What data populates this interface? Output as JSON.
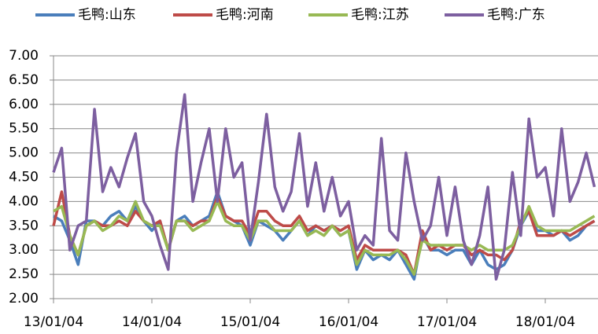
{
  "chart_data": {
    "type": "line",
    "categories": [
      "13/01/04",
      null,
      null,
      null,
      null,
      null,
      null,
      null,
      null,
      null,
      null,
      null,
      "14/01/04",
      null,
      null,
      null,
      null,
      null,
      null,
      null,
      null,
      null,
      null,
      null,
      "15/01/04",
      null,
      null,
      null,
      null,
      null,
      null,
      null,
      null,
      null,
      null,
      null,
      "16/01/04",
      null,
      null,
      null,
      null,
      null,
      null,
      null,
      null,
      null,
      null,
      null,
      "17/01/04",
      null,
      null,
      null,
      null,
      null,
      null,
      null,
      null,
      null,
      null,
      null,
      "18/01/04",
      null,
      null,
      null,
      null,
      null,
      null
    ],
    "series": [
      {
        "name": "毛鸭:山东",
        "color": "#4a7ebb",
        "values": [
          3.7,
          3.6,
          3.2,
          2.7,
          3.6,
          3.6,
          3.5,
          3.7,
          3.8,
          3.6,
          3.9,
          3.6,
          3.4,
          3.6,
          3.0,
          3.6,
          3.7,
          3.5,
          3.6,
          3.7,
          4.2,
          3.7,
          3.6,
          3.5,
          3.1,
          3.6,
          3.5,
          3.4,
          3.2,
          3.4,
          3.6,
          3.3,
          3.5,
          3.4,
          3.5,
          3.3,
          3.4,
          2.6,
          3.0,
          2.8,
          2.9,
          2.8,
          3.0,
          2.7,
          2.4,
          3.3,
          3.0,
          3.0,
          2.9,
          3.0,
          3.0,
          2.7,
          3.0,
          2.7,
          2.6,
          2.7,
          3.0,
          3.5,
          3.8,
          3.4,
          3.4,
          3.3,
          3.4,
          3.2,
          3.3,
          3.5,
          3.6
        ]
      },
      {
        "name": "毛鸭:河南",
        "color": "#be4b48",
        "values": [
          3.5,
          4.2,
          3.3,
          2.9,
          3.5,
          3.6,
          3.5,
          3.5,
          3.6,
          3.5,
          3.8,
          3.6,
          3.5,
          3.6,
          3.0,
          3.6,
          3.6,
          3.5,
          3.6,
          3.6,
          4.1,
          3.7,
          3.6,
          3.6,
          3.3,
          3.8,
          3.8,
          3.6,
          3.5,
          3.5,
          3.7,
          3.4,
          3.5,
          3.4,
          3.5,
          3.4,
          3.5,
          2.8,
          3.1,
          3.0,
          3.0,
          3.0,
          3.0,
          2.9,
          2.5,
          3.4,
          3.0,
          3.1,
          3.0,
          3.1,
          3.1,
          2.9,
          3.0,
          2.9,
          2.9,
          2.8,
          3.0,
          3.6,
          3.8,
          3.3,
          3.3,
          3.3,
          3.4,
          3.3,
          3.4,
          3.5,
          3.6
        ]
      },
      {
        "name": "毛鸭:江苏",
        "color": "#98b954",
        "values": [
          3.8,
          3.9,
          3.3,
          2.9,
          3.5,
          3.6,
          3.4,
          3.5,
          3.7,
          3.6,
          4.0,
          3.6,
          3.5,
          3.5,
          3.0,
          3.6,
          3.6,
          3.4,
          3.5,
          3.6,
          4.0,
          3.6,
          3.5,
          3.5,
          3.2,
          3.6,
          3.6,
          3.4,
          3.4,
          3.4,
          3.6,
          3.3,
          3.4,
          3.3,
          3.5,
          3.3,
          3.4,
          2.7,
          3.0,
          2.9,
          2.9,
          2.9,
          3.0,
          2.8,
          2.5,
          3.2,
          3.1,
          3.1,
          3.1,
          3.1,
          3.1,
          3.0,
          3.1,
          3.0,
          3.0,
          3.0,
          3.1,
          3.5,
          3.9,
          3.5,
          3.4,
          3.4,
          3.4,
          3.4,
          3.5,
          3.6,
          3.7
        ]
      },
      {
        "name": "毛鸭:广东",
        "color": "#7d5fa0",
        "values": [
          4.6,
          5.1,
          3.0,
          3.5,
          3.6,
          5.9,
          4.2,
          4.7,
          4.3,
          4.9,
          5.4,
          4.0,
          3.7,
          3.1,
          2.6,
          5.0,
          6.2,
          4.0,
          4.8,
          5.5,
          4.0,
          5.5,
          4.5,
          4.8,
          3.2,
          4.4,
          5.8,
          4.3,
          3.8,
          4.2,
          5.4,
          3.9,
          4.8,
          3.8,
          4.5,
          3.7,
          4.0,
          3.0,
          3.3,
          3.1,
          5.3,
          3.4,
          3.2,
          5.0,
          4.0,
          3.2,
          3.5,
          4.5,
          3.3,
          4.3,
          3.2,
          2.7,
          3.3,
          4.3,
          2.4,
          3.0,
          4.6,
          3.3,
          5.7,
          4.5,
          4.7,
          3.7,
          5.5,
          4.0,
          4.4,
          5.0,
          4.3
        ]
      }
    ],
    "ylim": [
      2,
      7
    ],
    "yticks": [
      {
        "value": 2,
        "label": "2.00"
      },
      {
        "value": 2.5,
        "label": "2.50"
      },
      {
        "value": 3,
        "label": "3.00"
      },
      {
        "value": 3.5,
        "label": "3.50"
      },
      {
        "value": 4,
        "label": "4.00"
      },
      {
        "value": 4.5,
        "label": "4.50"
      },
      {
        "value": 5,
        "label": "5.00"
      },
      {
        "value": 5.5,
        "label": "5.50"
      },
      {
        "value": 6,
        "label": "6.00"
      },
      {
        "value": 6.5,
        "label": "6.50"
      },
      {
        "value": 7,
        "label": "7.00"
      }
    ],
    "grid": true
  }
}
